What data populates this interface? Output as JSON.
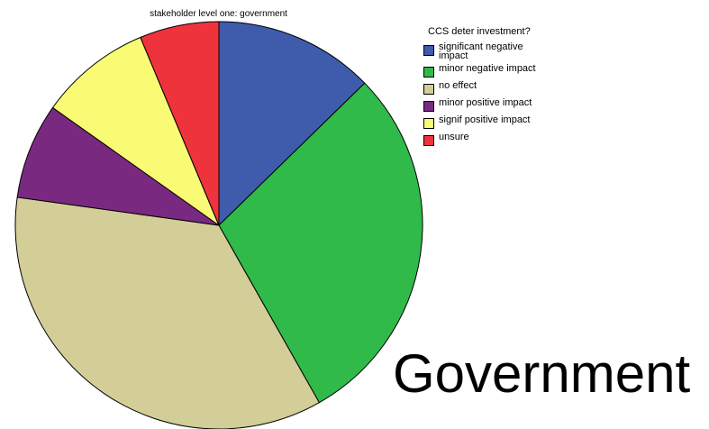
{
  "chart_data": {
    "type": "pie",
    "title": "stakeholder level one: government",
    "legend_title": "CCS deter investment?",
    "legend_placement": "top-right",
    "slices": [
      {
        "label": "significant negative impact",
        "value": 12.7,
        "color": "#3f5bab"
      },
      {
        "label": "minor negative impact",
        "value": 29.1,
        "color": "#2fba4a"
      },
      {
        "label": "no effect",
        "value": 35.4,
        "color": "#d3cd97"
      },
      {
        "label": "minor positive impact",
        "value": 7.6,
        "color": "#7a2980"
      },
      {
        "label": "signif positive impact",
        "value": 8.9,
        "color": "#fafb74"
      },
      {
        "label": "unsure",
        "value": 6.3,
        "color": "#ef333c"
      }
    ]
  },
  "big_label": "Government"
}
